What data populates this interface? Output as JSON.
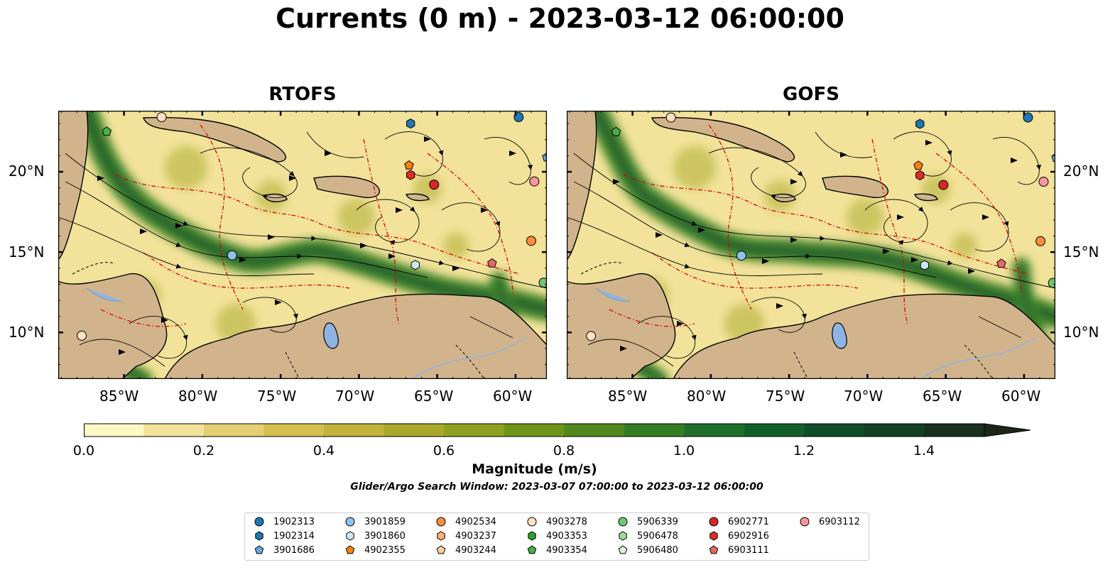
{
  "title": "Currents (0 m) - 2023-03-12 06:00:00",
  "panels": [
    {
      "title": "RTOFS"
    },
    {
      "title": "GOFS"
    }
  ],
  "axes": {
    "lon_ticks": [
      "85°W",
      "80°W",
      "75°W",
      "70°W",
      "65°W",
      "60°W"
    ],
    "lat_ticks": [
      "20°N",
      "15°N",
      "10°N"
    ]
  },
  "colorbar": {
    "label": "Magnitude (m/s)",
    "ticks": [
      "0.0",
      "0.2",
      "0.4",
      "0.6",
      "0.8",
      "1.0",
      "1.2",
      "1.4"
    ],
    "colors": [
      "#fff7c4",
      "#f2e29a",
      "#e4cf72",
      "#d5bf50",
      "#c2b33a",
      "#a9a82a",
      "#8ea01f",
      "#6f941a",
      "#50881d",
      "#357d23",
      "#1f6f2a",
      "#135f2b",
      "#0f4e26",
      "#133f22",
      "#17311e",
      "#1b2618"
    ]
  },
  "search_window": "Glider/Argo Search Window: 2023-03-07 07:00:00 to 2023-03-12 06:00:00",
  "legend": [
    {
      "label": "1902313",
      "marker": "circle",
      "color": "#1f77b4"
    },
    {
      "label": "1902314",
      "marker": "hexagon",
      "color": "#1f77b4"
    },
    {
      "label": "3901686",
      "marker": "pentagon",
      "color": "#6ea6e0"
    },
    {
      "label": "3901859",
      "marker": "circle",
      "color": "#8fc3ea"
    },
    {
      "label": "3901860",
      "marker": "hexagon",
      "color": "#cfe6f7"
    },
    {
      "label": "4902355",
      "marker": "pentagon",
      "color": "#ff7f0e"
    },
    {
      "label": "4902534",
      "marker": "circle",
      "color": "#fd8d3c"
    },
    {
      "label": "4903237",
      "marker": "hexagon",
      "color": "#fdae6b"
    },
    {
      "label": "4903244",
      "marker": "pentagon",
      "color": "#fdd0a2"
    },
    {
      "label": "4903278",
      "marker": "circle",
      "color": "#fde0c5"
    },
    {
      "label": "4903353",
      "marker": "hexagon",
      "color": "#2ca02c"
    },
    {
      "label": "4903354",
      "marker": "pentagon",
      "color": "#4daf4a"
    },
    {
      "label": "5906339",
      "marker": "circle",
      "color": "#74c476"
    },
    {
      "label": "5906478",
      "marker": "hexagon",
      "color": "#a1d99b"
    },
    {
      "label": "5906480",
      "marker": "pentagon",
      "color": "#d6f5cf"
    },
    {
      "label": "6902771",
      "marker": "circle",
      "color": "#d62728"
    },
    {
      "label": "6902916",
      "marker": "hexagon",
      "color": "#de2d26"
    },
    {
      "label": "6903111",
      "marker": "pentagon",
      "color": "#e36a6a"
    },
    {
      "label": "6903112",
      "marker": "circle",
      "color": "#f7969e"
    }
  ],
  "colors": {
    "land": "#d2b48c",
    "lake": "#8fb4e3",
    "sea_low": "#f2e29a",
    "current": "#2f7d1f",
    "eez": "#e00000"
  }
}
